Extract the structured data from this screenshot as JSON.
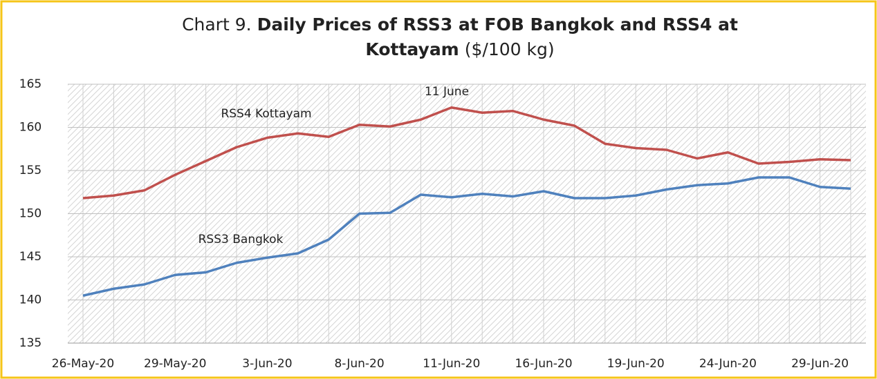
{
  "chart_data": {
    "type": "line",
    "title_lines": [
      [
        {
          "text": "Chart 9.",
          "bold": false
        },
        {
          "text": "Daily Prices of RSS3 at FOB Bangkok and RSS4 at",
          "bold": true
        }
      ],
      [
        {
          "text": "Kottayam",
          "bold": true
        },
        {
          "text": "($/100 kg)",
          "bold": false
        }
      ]
    ],
    "categories": [
      "26-May-20",
      null,
      null,
      "29-May-20",
      null,
      null,
      "3-Jun-20",
      null,
      null,
      "8-Jun-20",
      null,
      null,
      "11-Jun-20",
      null,
      null,
      "16-Jun-20",
      null,
      null,
      "19-Jun-20",
      null,
      null,
      "24-Jun-20",
      null,
      null,
      "29-Jun-20",
      null
    ],
    "series": [
      {
        "name": "RSS4 Kottayam",
        "color": "#c0504d",
        "values": [
          151.8,
          152.1,
          152.7,
          154.5,
          156.1,
          157.7,
          158.8,
          159.3,
          158.9,
          160.3,
          160.1,
          160.9,
          162.3,
          161.7,
          161.9,
          160.9,
          160.2,
          158.1,
          157.6,
          157.4,
          156.4,
          157.1,
          155.8,
          156.0,
          156.3,
          156.2
        ]
      },
      {
        "name": "RSS3 Bangkok",
        "color": "#4f81bd",
        "values": [
          140.5,
          141.3,
          141.8,
          142.9,
          143.2,
          144.3,
          144.9,
          145.4,
          147.0,
          150.0,
          150.1,
          152.2,
          151.9,
          152.3,
          152.0,
          152.6,
          151.8,
          151.8,
          152.1,
          152.8,
          153.3,
          153.5,
          154.2,
          154.2,
          153.1,
          152.9
        ]
      }
    ],
    "annotations": [
      "11 June"
    ],
    "ylim": [
      135,
      165
    ],
    "yticks": [
      135,
      140,
      145,
      150,
      155,
      160,
      165
    ],
    "grid": true
  }
}
